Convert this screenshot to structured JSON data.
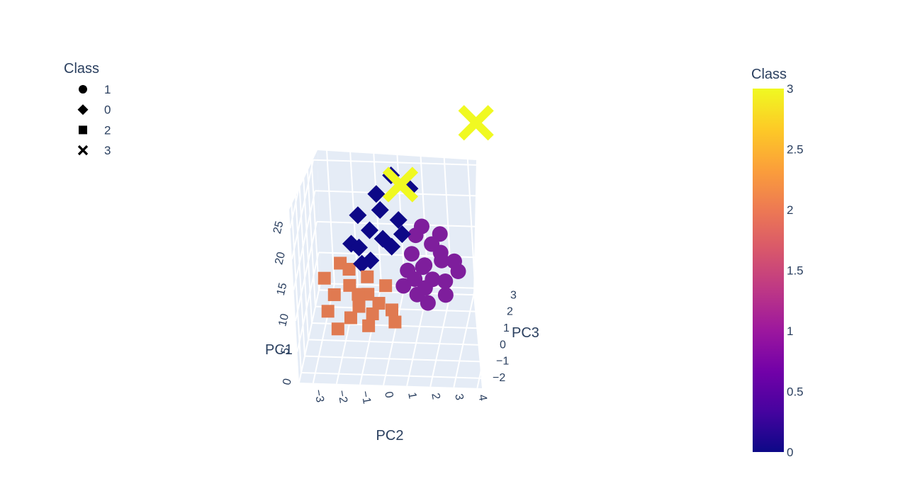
{
  "chart_data": {
    "type": "scatter",
    "three_d": true,
    "legend": {
      "title": "Class",
      "placement": "top-left",
      "items": [
        {
          "label": "1",
          "symbol": "circle"
        },
        {
          "label": "0",
          "symbol": "diamond"
        },
        {
          "label": "2",
          "symbol": "square"
        },
        {
          "label": "3",
          "symbol": "x"
        }
      ]
    },
    "axes": {
      "x": {
        "title": "PC2",
        "ticks": [
          "−3",
          "−2",
          "−1",
          "0",
          "1",
          "2",
          "3",
          "4"
        ],
        "range": [
          -3.6,
          4.2
        ]
      },
      "y": {
        "title": "PC3",
        "ticks": [
          "3",
          "2",
          "1",
          "0",
          "−1",
          "−2"
        ],
        "range": [
          -2.6,
          3.4
        ]
      },
      "z": {
        "title": "PC1",
        "ticks": [
          "0",
          "5",
          "10",
          "15",
          "20",
          "25"
        ],
        "range": [
          0,
          28
        ]
      }
    },
    "colorbar": {
      "title": "Class",
      "ticks": [
        "3",
        "2.5",
        "2",
        "1.5",
        "1",
        "0.5",
        "0"
      ],
      "range": [
        0,
        3
      ],
      "colors": [
        "#0d0887",
        "#46039f",
        "#7201a8",
        "#9c179e",
        "#bd3786",
        "#d8576b",
        "#ed7953",
        "#fb9f3a",
        "#fdca26",
        "#f0f921"
      ]
    },
    "series": [
      {
        "class": 1,
        "symbol": "circle",
        "color": "#7e1e9c",
        "points": [
          [
            1.0,
            0.5,
            9.0
          ],
          [
            1.4,
            0.8,
            10.5
          ],
          [
            1.8,
            0.3,
            9.6
          ],
          [
            2.1,
            1.0,
            10.8
          ],
          [
            0.8,
            1.2,
            11.2
          ],
          [
            1.6,
            1.6,
            11.8
          ],
          [
            2.3,
            0.5,
            8.8
          ],
          [
            1.2,
            -0.2,
            8.4
          ],
          [
            0.6,
            0.0,
            9.2
          ],
          [
            2.6,
            1.2,
            10.2
          ],
          [
            1.9,
            2.0,
            12.4
          ],
          [
            0.9,
            1.8,
            12.6
          ],
          [
            2.4,
            -0.1,
            8.2
          ],
          [
            1.3,
            0.9,
            9.9
          ],
          [
            1.7,
            -0.5,
            7.9
          ],
          [
            2.8,
            0.9,
            9.4
          ],
          [
            1.1,
            2.2,
            13.0
          ],
          [
            0.7,
            0.6,
            10.1
          ],
          [
            2.0,
            1.4,
            11.0
          ],
          [
            1.5,
            0.1,
            8.7
          ]
        ]
      },
      {
        "class": 0,
        "symbol": "diamond",
        "color": "#0d0887",
        "points": [
          [
            -1.0,
            1.5,
            14.0
          ],
          [
            -0.6,
            2.0,
            16.0
          ],
          [
            -1.4,
            1.0,
            12.5
          ],
          [
            -0.4,
            1.2,
            13.5
          ],
          [
            -0.8,
            2.4,
            17.5
          ],
          [
            0.2,
            1.8,
            15.0
          ],
          [
            -1.6,
            2.2,
            14.5
          ],
          [
            -1.2,
            0.4,
            11.5
          ],
          [
            0.6,
            2.6,
            18.0
          ],
          [
            0.0,
            1.0,
            12.8
          ],
          [
            -0.2,
            2.8,
            19.5
          ],
          [
            -1.8,
            1.4,
            12.0
          ],
          [
            -0.9,
            0.8,
            11.0
          ],
          [
            0.4,
            1.4,
            13.8
          ]
        ]
      },
      {
        "class": 2,
        "symbol": "square",
        "color": "#e07a51",
        "points": [
          [
            -2.8,
            0.2,
            9.5
          ],
          [
            -2.3,
            -0.4,
            8.5
          ],
          [
            -1.7,
            0.0,
            9.0
          ],
          [
            -1.2,
            -0.8,
            7.8
          ],
          [
            -0.9,
            -0.2,
            8.2
          ],
          [
            -0.4,
            -0.5,
            7.6
          ],
          [
            -1.5,
            -1.2,
            7.0
          ],
          [
            -2.0,
            -1.6,
            6.2
          ],
          [
            -0.6,
            -1.0,
            7.2
          ],
          [
            0.2,
            -0.8,
            7.4
          ],
          [
            -1.0,
            0.4,
            9.4
          ],
          [
            -2.5,
            -1.0,
            7.4
          ],
          [
            -0.2,
            0.2,
            8.6
          ],
          [
            -1.3,
            -0.3,
            8.4
          ],
          [
            0.4,
            -1.3,
            6.8
          ],
          [
            -1.8,
            0.6,
            10.0
          ],
          [
            -0.7,
            -1.5,
            6.6
          ],
          [
            -2.2,
            0.8,
            10.4
          ]
        ]
      },
      {
        "class": 3,
        "symbol": "x",
        "color": "#f0f921",
        "points": [
          [
            0.6,
            0.6,
            24.0
          ],
          [
            3.6,
            2.6,
            29.0
          ]
        ]
      }
    ]
  }
}
